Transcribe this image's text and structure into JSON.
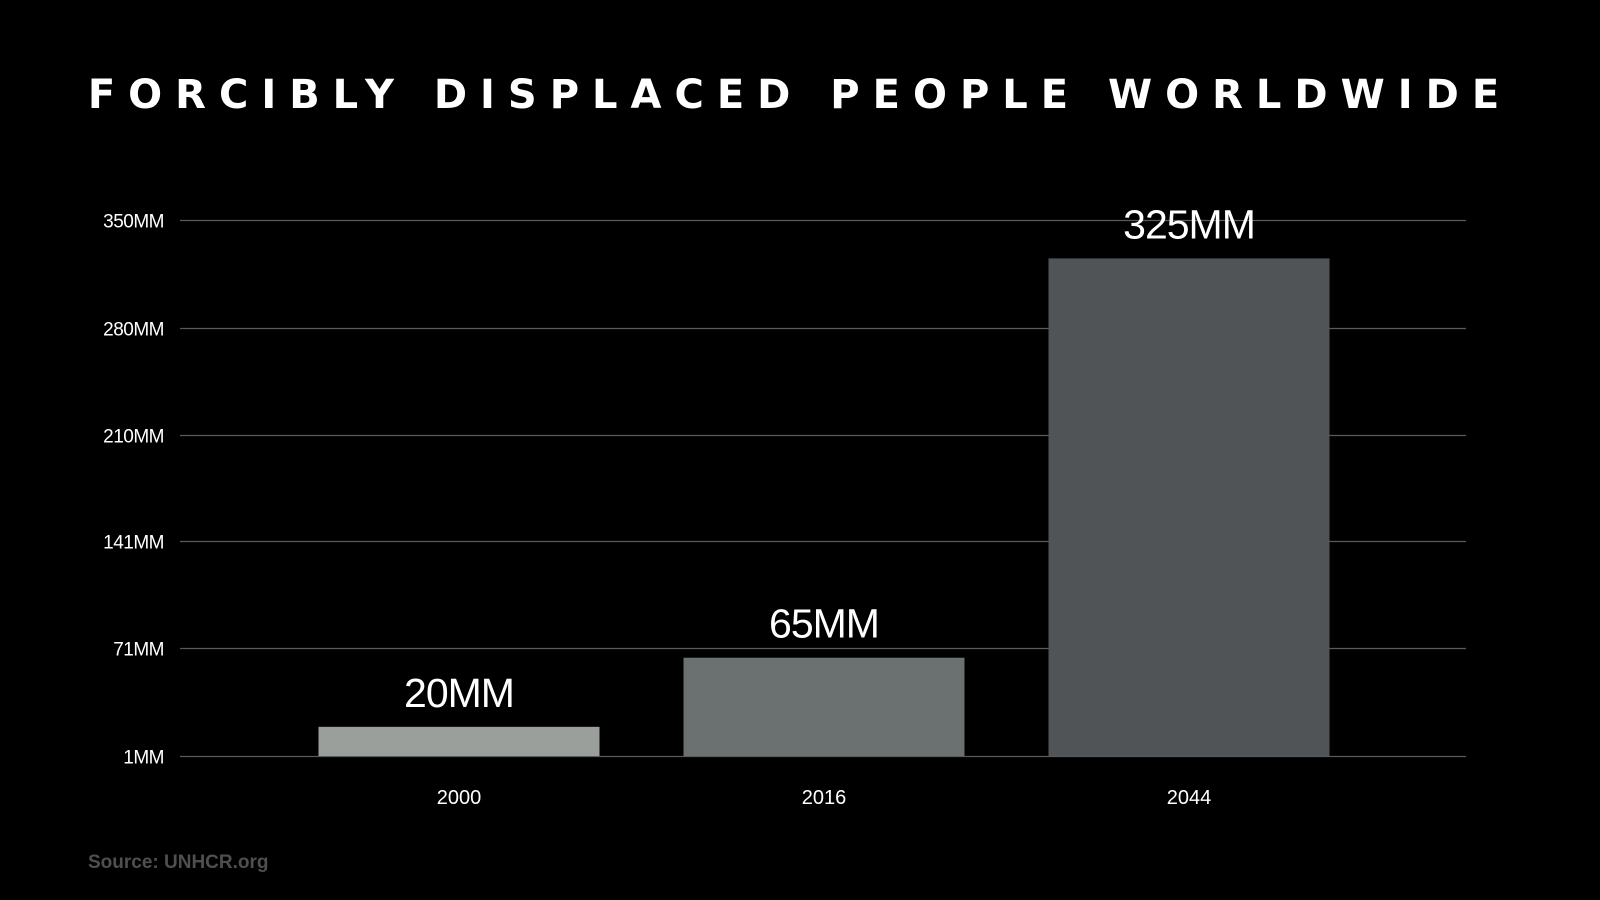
{
  "chart_data": {
    "type": "bar",
    "title": "FORCIBLY DISPLACED PEOPLE WORLDWIDE",
    "categories": [
      "2000",
      "2016",
      "2044"
    ],
    "values": [
      20,
      65,
      325
    ],
    "data_labels": [
      "20MM",
      "65MM",
      "325MM"
    ],
    "unit": "MM",
    "ylim": [
      1,
      350
    ],
    "yticks": [
      {
        "value": 1,
        "label": "1MM"
      },
      {
        "value": 71,
        "label": "71MM"
      },
      {
        "value": 141,
        "label": "141MM"
      },
      {
        "value": 210,
        "label": "210MM"
      },
      {
        "value": 280,
        "label": "280MM"
      },
      {
        "value": 350,
        "label": "350MM"
      }
    ],
    "grid": true,
    "xlabel": "",
    "ylabel": "",
    "bar_colors": [
      "#9b9f9b",
      "#6b7071",
      "#505456"
    ],
    "gridline_color": "#5a5a5a"
  },
  "source": "Source: UNHCR.org"
}
